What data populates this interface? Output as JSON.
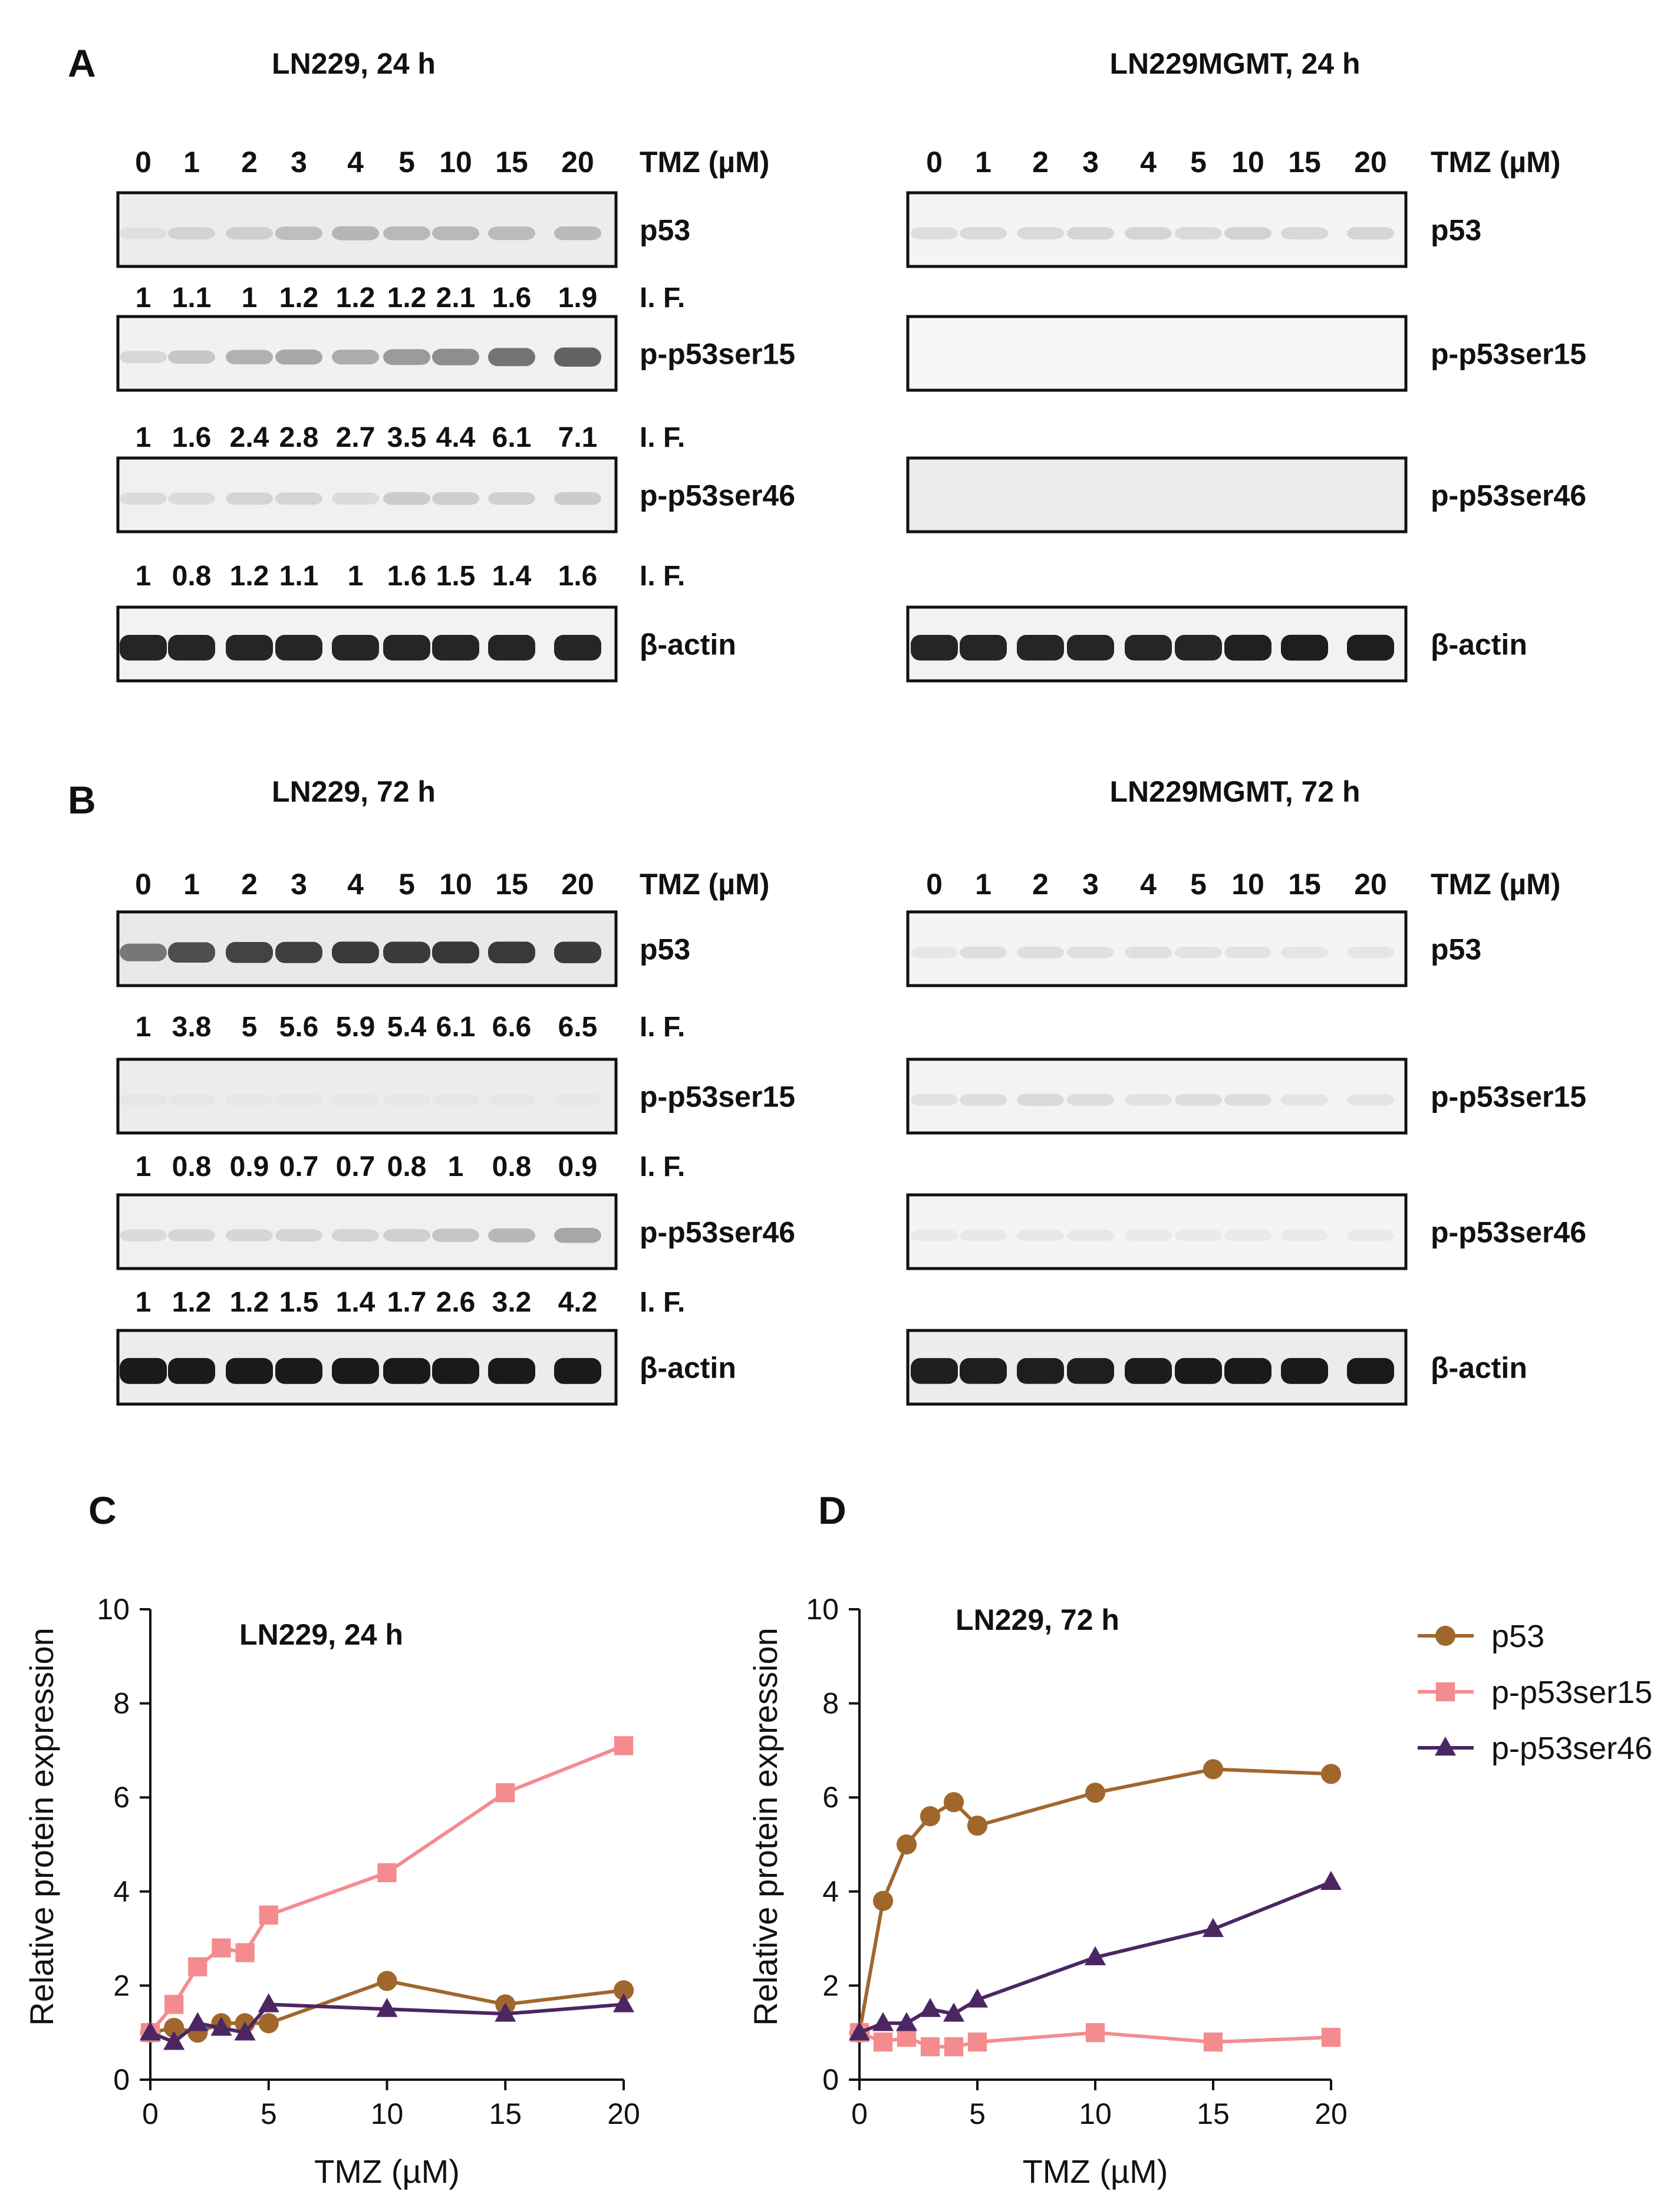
{
  "colors": {
    "p53": "#a0672d",
    "p-p53ser15": "#f48c8f",
    "p-p53ser46": "#4b2663",
    "band": "#1a1a1a",
    "frame": "#111111"
  },
  "lane_labels": [
    "0",
    "1",
    "2",
    "3",
    "4",
    "5",
    "10",
    "15",
    "20"
  ],
  "tmz_label": "TMZ (µM)",
  "if_label": "I. F.",
  "panels": [
    {
      "letter": "A",
      "title_left": "LN229, 24 h",
      "title_right": "LN229MGMT, 24 h",
      "left_blots": [
        {
          "protein": "p53",
          "band_intensity": [
            0.06,
            0.12,
            0.14,
            0.22,
            0.26,
            0.25,
            0.25,
            0.23,
            0.24
          ],
          "background": "#ececec",
          "if": [
            "1",
            "1.1",
            "1",
            "1.2",
            "1.2",
            "1.2",
            "2.1",
            "1.6",
            "1.9"
          ]
        },
        {
          "protein": "p-p53ser15",
          "band_intensity": [
            0.12,
            0.2,
            0.3,
            0.34,
            0.32,
            0.4,
            0.46,
            0.58,
            0.66
          ],
          "background": "#f1f1f1",
          "if": [
            "1",
            "1.6",
            "2.4",
            "2.8",
            "2.7",
            "3.5",
            "4.4",
            "6.1",
            "7.1"
          ]
        },
        {
          "protein": "p-p53ser46",
          "band_intensity": [
            0.1,
            0.1,
            0.13,
            0.13,
            0.1,
            0.17,
            0.16,
            0.15,
            0.17
          ],
          "background": "#f0f0f0",
          "if": [
            "1",
            "0.8",
            "1.2",
            "1.1",
            "1",
            "1.6",
            "1.5",
            "1.4",
            "1.6"
          ]
        },
        {
          "protein": "β-actin",
          "band_intensity": [
            0.95,
            0.95,
            0.95,
            0.95,
            0.95,
            0.95,
            0.95,
            0.95,
            0.95
          ],
          "background": "#f2f2f2",
          "if": []
        }
      ],
      "right_blots": [
        {
          "protein": "p53",
          "band_intensity": [
            0.1,
            0.12,
            0.12,
            0.14,
            0.14,
            0.12,
            0.15,
            0.13,
            0.14
          ],
          "background": "#f4f4f4"
        },
        {
          "protein": "p-p53ser15",
          "band_intensity": [
            0,
            0,
            0,
            0,
            0,
            0,
            0,
            0,
            0
          ],
          "background": "#f6f6f6"
        },
        {
          "protein": "p-p53ser46",
          "band_intensity": [
            0,
            0,
            0,
            0,
            0,
            0,
            0,
            0,
            0
          ],
          "background": "#ebebeb"
        },
        {
          "protein": "β-actin",
          "band_intensity": [
            0.95,
            0.95,
            0.95,
            0.95,
            0.95,
            0.95,
            0.97,
            0.98,
            0.98
          ],
          "background": "#f2f2f2"
        }
      ]
    },
    {
      "letter": "B",
      "title_left": "LN229, 72 h",
      "title_right": "LN229MGMT, 72 h",
      "left_blots": [
        {
          "protein": "p53",
          "band_intensity": [
            0.55,
            0.75,
            0.8,
            0.82,
            0.85,
            0.84,
            0.86,
            0.85,
            0.84
          ],
          "background": "#e9e9e9",
          "if": [
            "1",
            "3.8",
            "5",
            "5.6",
            "5.9",
            "5.4",
            "6.1",
            "6.6",
            "6.5"
          ]
        },
        {
          "protein": "p-p53ser15",
          "band_intensity": [
            0.03,
            0.03,
            0.03,
            0.03,
            0.03,
            0.03,
            0.03,
            0.03,
            0.03
          ],
          "background": "#ececec",
          "if": [
            "1",
            "0.8",
            "0.9",
            "0.7",
            "0.7",
            "0.8",
            "1",
            "0.8",
            "0.9"
          ]
        },
        {
          "protein": "p-p53ser46",
          "band_intensity": [
            0.1,
            0.12,
            0.12,
            0.13,
            0.13,
            0.15,
            0.2,
            0.26,
            0.34
          ],
          "background": "#f0f0f0",
          "if": [
            "1",
            "1.2",
            "1.2",
            "1.5",
            "1.4",
            "1.7",
            "2.6",
            "3.2",
            "4.2"
          ]
        },
        {
          "protein": "β-actin",
          "band_intensity": [
            1,
            1,
            1,
            1,
            1,
            1,
            1,
            1,
            1
          ],
          "background": "#ececec",
          "if": []
        }
      ],
      "right_blots": [
        {
          "protein": "p53",
          "band_intensity": [
            0.06,
            0.1,
            0.1,
            0.09,
            0.09,
            0.08,
            0.08,
            0.07,
            0.07
          ],
          "background": "#f4f4f4"
        },
        {
          "protein": "p-p53ser15",
          "band_intensity": [
            0.08,
            0.1,
            0.12,
            0.1,
            0.08,
            0.1,
            0.1,
            0.07,
            0.07
          ],
          "background": "#f3f3f3"
        },
        {
          "protein": "p-p53ser46",
          "band_intensity": [
            0.05,
            0.06,
            0.06,
            0.06,
            0.05,
            0.05,
            0.05,
            0.05,
            0.05
          ],
          "background": "#f4f4f4"
        },
        {
          "protein": "β-actin",
          "band_intensity": [
            0.98,
            0.98,
            0.98,
            0.98,
            0.99,
            1,
            1,
            1,
            1
          ],
          "background": "#ececec"
        }
      ]
    }
  ],
  "chart_data": [
    {
      "letter": "C",
      "type": "line",
      "title": "LN229, 24 h",
      "xlabel": "TMZ (µM)",
      "ylabel": "Relative protein expression",
      "xlim": [
        0,
        20
      ],
      "ylim": [
        0,
        10
      ],
      "xticks": [
        0,
        5,
        10,
        15,
        20
      ],
      "yticks": [
        0,
        2,
        4,
        6,
        8,
        10
      ],
      "x": [
        0,
        1,
        2,
        3,
        4,
        5,
        10,
        15,
        20
      ],
      "series": [
        {
          "name": "p53",
          "marker": "circle",
          "values": [
            1,
            1.1,
            1,
            1.2,
            1.2,
            1.2,
            2.1,
            1.6,
            1.9
          ]
        },
        {
          "name": "p-p53ser15",
          "marker": "square",
          "values": [
            1,
            1.6,
            2.4,
            2.8,
            2.7,
            3.5,
            4.4,
            6.1,
            7.1
          ]
        },
        {
          "name": "p-p53ser46",
          "marker": "triangle",
          "values": [
            1,
            0.8,
            1.2,
            1.1,
            1,
            1.6,
            1.5,
            1.4,
            1.6
          ]
        }
      ]
    },
    {
      "letter": "D",
      "type": "line",
      "title": "LN229, 72 h",
      "xlabel": "TMZ (µM)",
      "ylabel": "Relative protein expression",
      "xlim": [
        0,
        20
      ],
      "ylim": [
        0,
        10
      ],
      "xticks": [
        0,
        5,
        10,
        15,
        20
      ],
      "yticks": [
        0,
        2,
        4,
        6,
        8,
        10
      ],
      "x": [
        0,
        1,
        2,
        3,
        4,
        5,
        10,
        15,
        20
      ],
      "legend": "right",
      "series": [
        {
          "name": "p53",
          "marker": "circle",
          "values": [
            1,
            3.8,
            5,
            5.6,
            5.9,
            5.4,
            6.1,
            6.6,
            6.5
          ]
        },
        {
          "name": "p-p53ser15",
          "marker": "square",
          "values": [
            1,
            0.8,
            0.9,
            0.7,
            0.7,
            0.8,
            1,
            0.8,
            0.9
          ]
        },
        {
          "name": "p-p53ser46",
          "marker": "triangle",
          "values": [
            1,
            1.2,
            1.2,
            1.5,
            1.4,
            1.7,
            2.6,
            3.2,
            4.2
          ]
        }
      ]
    }
  ]
}
